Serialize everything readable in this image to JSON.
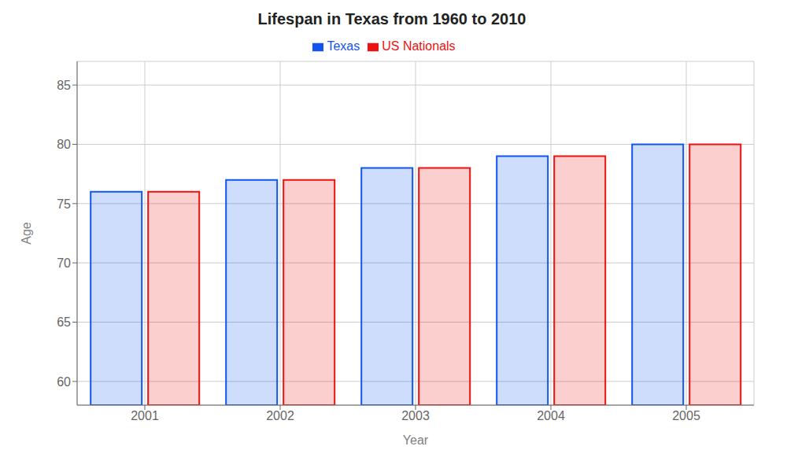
{
  "chart_data": {
    "type": "bar",
    "title": "Lifespan in Texas from 1960 to 2010",
    "xlabel": "Year",
    "ylabel": "Age",
    "categories": [
      "2001",
      "2002",
      "2003",
      "2004",
      "2005"
    ],
    "series": [
      {
        "name": "Texas",
        "color": "#1155ee",
        "values": [
          76,
          77,
          78,
          79,
          80
        ]
      },
      {
        "name": "US Nationals",
        "color": "#ee1111",
        "values": [
          76,
          77,
          78,
          79,
          80
        ]
      }
    ],
    "ylim": [
      58,
      87
    ],
    "yticks": [
      60,
      65,
      70,
      75,
      80,
      85
    ],
    "grid": true,
    "legend": "top"
  }
}
